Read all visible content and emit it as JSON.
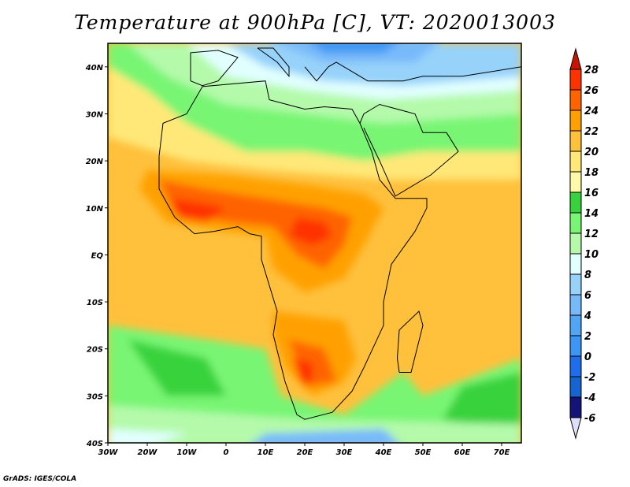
{
  "chart_data": {
    "type": "heatmap",
    "title": "Temperature at 900hPa [C], VT: 2020013003",
    "variable": "Temperature at 900hPa",
    "units": "C",
    "valid_time": "2020013003",
    "x_ticks": [
      "30W",
      "20W",
      "10W",
      "0",
      "10E",
      "20E",
      "30E",
      "40E",
      "50E",
      "60E",
      "70E"
    ],
    "x_tick_values": [
      -30,
      -20,
      -10,
      0,
      10,
      20,
      30,
      40,
      50,
      60,
      70
    ],
    "y_ticks": [
      "40N",
      "30N",
      "20N",
      "10N",
      "EQ",
      "10S",
      "20S",
      "30S",
      "40S"
    ],
    "y_tick_values": [
      40,
      30,
      20,
      10,
      0,
      -10,
      -20,
      -30,
      -40
    ],
    "xlim": [
      -30,
      75
    ],
    "ylim": [
      -40,
      45
    ],
    "colorbar": {
      "labels": [
        "28",
        "26",
        "24",
        "22",
        "20",
        "18",
        "16",
        "14",
        "12",
        "10",
        "8",
        "6",
        "4",
        "2",
        "0",
        "-2",
        "-4",
        "-6"
      ],
      "levels": [
        28,
        26,
        24,
        22,
        20,
        18,
        16,
        14,
        12,
        10,
        8,
        6,
        4,
        2,
        0,
        -2,
        -4,
        -6
      ],
      "above_color": "#c81400",
      "below_color": "#e0e0fc",
      "colors": [
        "#ff3200",
        "#ff6400",
        "#ffa000",
        "#ffc03c",
        "#ffe878",
        "#fffaaa",
        "#37d23c",
        "#78f573",
        "#b4faaa",
        "#e1ffff",
        "#96d2fa",
        "#78b9fa",
        "#50a5f5",
        "#3c96f5",
        "#1e6eeb",
        "#1464d2",
        "#141478"
      ]
    }
  },
  "footer": "GrADS: IGES/COLA"
}
